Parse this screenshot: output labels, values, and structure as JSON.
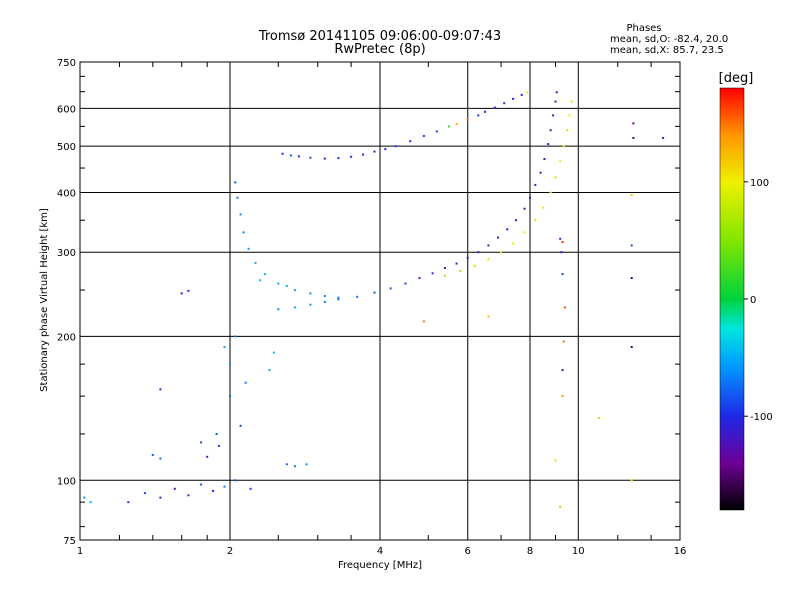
{
  "chart_data": {
    "type": "scatter",
    "title": "Tromsø 20141105 09:06:00-09:07:43",
    "subtitle": "RwPretec (8p)",
    "xlabel": "Frequency [MHz]",
    "ylabel": "Stationary phase Virtual Height [km]",
    "xscale": "log",
    "yscale": "log",
    "xlim": [
      1,
      16
    ],
    "ylim": [
      75,
      750
    ],
    "grid": true,
    "x_ticks": [
      1,
      2,
      4,
      6,
      8,
      10,
      16
    ],
    "y_ticks": [
      75,
      100,
      200,
      300,
      400,
      500,
      600,
      750
    ],
    "phase_stats": {
      "title": "Phases",
      "o_line": "mean, sd,O: -82.4, 20.0",
      "x_line": "mean, sd,X:  85.7, 23.5"
    },
    "colorbar": {
      "label": "[deg]",
      "range": [
        -180,
        180
      ],
      "ticks": [
        100,
        0,
        -100
      ]
    },
    "point_size": 2,
    "series": [
      {
        "description_role": "F2 upper trace",
        "points": [
          [
            2.55,
            482,
            -100
          ],
          [
            2.65,
            478,
            -85
          ],
          [
            2.75,
            476,
            -105
          ],
          [
            2.9,
            473,
            -90
          ],
          [
            3.1,
            471,
            -110
          ],
          [
            3.3,
            472,
            -100
          ],
          [
            3.5,
            475,
            -95
          ],
          [
            3.7,
            480,
            -100
          ],
          [
            3.9,
            487,
            -105
          ],
          [
            4.1,
            493,
            -98
          ],
          [
            4.3,
            500,
            -95
          ],
          [
            4.6,
            512,
            -100
          ],
          [
            4.9,
            525,
            -95
          ],
          [
            5.2,
            537,
            -90
          ],
          [
            5.5,
            550,
            20
          ],
          [
            5.7,
            556,
            130
          ],
          [
            6.0,
            568,
            150
          ],
          [
            6.3,
            580,
            -90
          ],
          [
            6.5,
            590,
            -110
          ],
          [
            6.8,
            602,
            -100
          ],
          [
            7.1,
            615,
            -95
          ],
          [
            7.4,
            628,
            -105
          ],
          [
            7.7,
            640,
            -100
          ],
          [
            7.9,
            648,
            90
          ]
        ]
      },
      {
        "description_role": "F2 lower trace",
        "points": [
          [
            2.5,
            228,
            -60
          ],
          [
            2.7,
            230,
            -50
          ],
          [
            2.9,
            233,
            -55
          ],
          [
            3.1,
            236,
            -60
          ],
          [
            3.3,
            239,
            -70
          ],
          [
            3.6,
            242,
            -75
          ],
          [
            3.9,
            247,
            -80
          ],
          [
            4.2,
            252,
            -85
          ],
          [
            4.5,
            258,
            -90
          ],
          [
            4.8,
            265,
            -95
          ],
          [
            5.1,
            271,
            -100
          ],
          [
            5.4,
            278,
            -100
          ],
          [
            5.7,
            284,
            -105
          ],
          [
            6.0,
            292,
            -110
          ],
          [
            6.3,
            300,
            -108
          ],
          [
            6.6,
            310,
            -112
          ],
          [
            6.9,
            322,
            -115
          ],
          [
            7.2,
            335,
            -110
          ],
          [
            7.5,
            350,
            -115
          ],
          [
            7.8,
            370,
            -118
          ],
          [
            8.0,
            390,
            -120
          ],
          [
            8.2,
            415,
            -118
          ],
          [
            8.4,
            440,
            -120
          ],
          [
            8.55,
            470,
            -122
          ],
          [
            8.7,
            505,
            -120
          ],
          [
            8.8,
            540,
            -118
          ],
          [
            8.9,
            580,
            -120
          ],
          [
            9.0,
            620,
            -115
          ],
          [
            9.05,
            648,
            -120
          ]
        ]
      },
      {
        "description_role": "F2 X trace",
        "points": [
          [
            5.4,
            268,
            70
          ],
          [
            5.8,
            274,
            75
          ],
          [
            6.2,
            281,
            80
          ],
          [
            6.6,
            290,
            90
          ],
          [
            7.0,
            300,
            85
          ],
          [
            7.4,
            313,
            95
          ],
          [
            7.8,
            330,
            100
          ],
          [
            8.2,
            350,
            90
          ],
          [
            8.5,
            372,
            95
          ],
          [
            8.8,
            400,
            100
          ],
          [
            9.0,
            430,
            80
          ],
          [
            9.2,
            465,
            95
          ],
          [
            9.35,
            500,
            100
          ],
          [
            9.5,
            540,
            85
          ],
          [
            9.6,
            580,
            100
          ],
          [
            9.7,
            620,
            110
          ]
        ]
      },
      {
        "description_role": "F1 cusp branch",
        "points": [
          [
            2.05,
            420,
            -80
          ],
          [
            2.07,
            390,
            -70
          ],
          [
            2.1,
            360,
            -60
          ],
          [
            2.13,
            330,
            -65
          ],
          [
            2.18,
            305,
            -55
          ],
          [
            2.25,
            285,
            -50
          ],
          [
            2.35,
            270,
            -45
          ],
          [
            2.5,
            258,
            -50
          ],
          [
            2.7,
            250,
            -55
          ],
          [
            2.9,
            246,
            -60
          ],
          [
            3.1,
            243,
            -65
          ],
          [
            2.3,
            262,
            -40
          ],
          [
            2.6,
            255,
            -45
          ],
          [
            3.3,
            241,
            -70
          ]
        ]
      },
      {
        "description_role": "E and lower layer echoes",
        "points": [
          [
            1.02,
            92,
            -60
          ],
          [
            1.05,
            90,
            -50
          ],
          [
            1.25,
            90,
            -100
          ],
          [
            1.35,
            94,
            -90
          ],
          [
            1.45,
            92,
            -110
          ],
          [
            1.55,
            96,
            -100
          ],
          [
            1.65,
            93,
            -95
          ],
          [
            1.75,
            98,
            -85
          ],
          [
            1.85,
            95,
            -100
          ],
          [
            1.95,
            97,
            -70
          ],
          [
            2.05,
            100,
            -80
          ],
          [
            2.2,
            96,
            -90
          ],
          [
            1.4,
            113,
            -80
          ],
          [
            1.45,
            111,
            -70
          ],
          [
            1.8,
            112,
            -100
          ],
          [
            1.9,
            118,
            -90
          ],
          [
            2.6,
            108,
            -80
          ],
          [
            2.7,
            107,
            -70
          ],
          [
            2.85,
            108,
            -60
          ],
          [
            1.6,
            246,
            -110
          ],
          [
            1.65,
            249,
            -100
          ],
          [
            1.45,
            155,
            -100
          ],
          [
            1.75,
            120,
            -90
          ],
          [
            1.88,
            125,
            -85
          ],
          [
            2.0,
            150,
            -75
          ],
          [
            2.0,
            175,
            -60
          ],
          [
            1.95,
            190,
            -55
          ],
          [
            2.05,
            200,
            -65
          ],
          [
            2.15,
            160,
            -70
          ],
          [
            2.4,
            170,
            -45
          ],
          [
            2.45,
            185,
            -40
          ],
          [
            2.1,
            130,
            -90
          ],
          [
            4.9,
            215,
            150
          ],
          [
            6.6,
            220,
            120
          ],
          [
            9.0,
            110,
            110
          ],
          [
            9.2,
            88,
            120
          ],
          [
            9.3,
            150,
            140
          ],
          [
            9.3,
            170,
            -130
          ],
          [
            9.35,
            195,
            150
          ],
          [
            9.4,
            230,
            160
          ],
          [
            9.3,
            270,
            -90
          ],
          [
            9.25,
            300,
            -110
          ],
          [
            9.2,
            320,
            -95
          ],
          [
            9.3,
            315,
            170
          ],
          [
            11,
            135,
            110
          ],
          [
            12.8,
            100,
            100
          ],
          [
            12.8,
            190,
            -150
          ],
          [
            12.8,
            265,
            -150
          ],
          [
            12.8,
            310,
            -90
          ],
          [
            12.8,
            395,
            120
          ],
          [
            12.9,
            520,
            -150
          ],
          [
            12.9,
            558,
            -140
          ],
          [
            14.8,
            520,
            -110
          ]
        ]
      }
    ]
  }
}
